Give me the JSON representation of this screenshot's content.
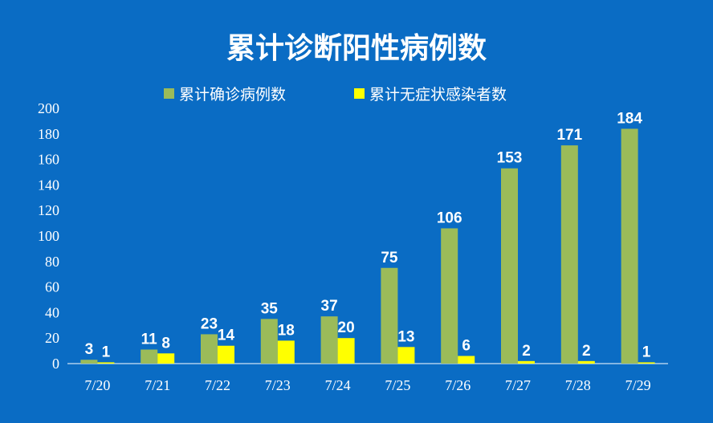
{
  "colors": {
    "background": "#0a6cc4",
    "confirmed": "#9bbb59",
    "asymptomatic": "#ffff00",
    "axis": "#ffffff"
  },
  "chart_data": {
    "type": "bar",
    "title": "累计诊断阳性病例数",
    "xlabel": "",
    "ylabel": "",
    "ylim": [
      0,
      200
    ],
    "yticks": [
      0,
      20,
      40,
      60,
      80,
      100,
      120,
      140,
      160,
      180,
      200
    ],
    "grid": false,
    "legend_position": "top",
    "categories": [
      "7/20",
      "7/21",
      "7/22",
      "7/23",
      "7/24",
      "7/25",
      "7/26",
      "7/27",
      "7/28",
      "7/29"
    ],
    "series": [
      {
        "name": "累计确诊病例数",
        "color": "#9bbb59",
        "values": [
          3,
          11,
          23,
          35,
          37,
          75,
          106,
          153,
          171,
          184
        ]
      },
      {
        "name": "累计无症状感染者数",
        "color": "#ffff00",
        "values": [
          1,
          8,
          14,
          18,
          20,
          13,
          6,
          2,
          2,
          1
        ]
      }
    ]
  }
}
